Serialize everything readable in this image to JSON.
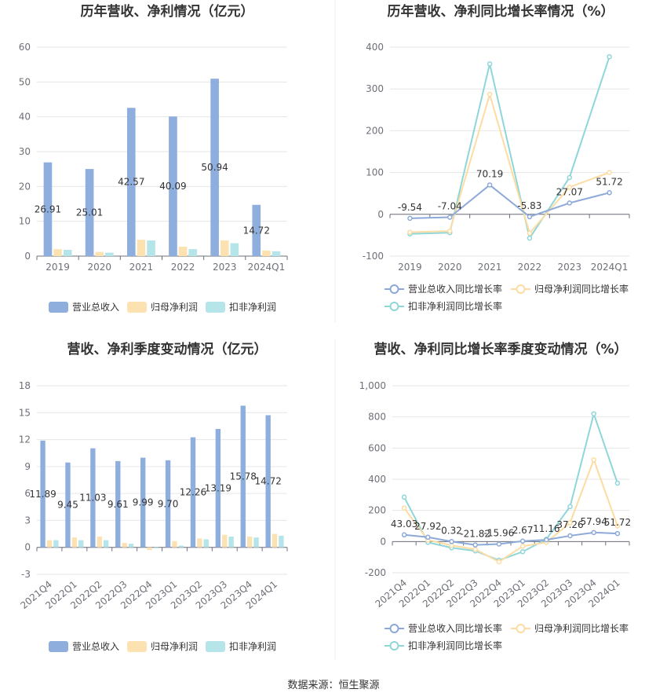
{
  "source": "数据来源：恒生聚源",
  "colors": {
    "revenue": "#8eaedd",
    "netprofit": "#fde2b1",
    "deducted": "#b5e5e8",
    "rev_line": "#8ca9d9",
    "np_line": "#fcdca2",
    "ded_line": "#8fd6d9"
  },
  "chart_data": [
    {
      "type": "bar",
      "title": "历年营收、净利情况（亿元）",
      "categories": [
        "2019",
        "2020",
        "2021",
        "2022",
        "2023",
        "2024Q1"
      ],
      "ylim": [
        0,
        60
      ],
      "yticks": [
        "0",
        "10",
        "20",
        "30",
        "40",
        "50",
        "60"
      ],
      "series": [
        {
          "name": "营业总收入",
          "values": [
            26.91,
            25.01,
            42.57,
            40.09,
            50.94,
            14.72
          ],
          "labels": [
            "26.91",
            "25.01",
            "42.57",
            "40.09",
            "50.94",
            "14.72"
          ]
        },
        {
          "name": "归母净利润",
          "values": [
            2.0,
            1.2,
            4.7,
            2.7,
            4.5,
            1.6
          ]
        },
        {
          "name": "扣非净利润",
          "values": [
            1.8,
            1.0,
            4.5,
            2.0,
            3.7,
            1.4
          ]
        }
      ],
      "legend": "bottom"
    },
    {
      "type": "line",
      "title": "历年营收、净利同比增长率情况（%）",
      "categories": [
        "2019",
        "2020",
        "2021",
        "2022",
        "2023",
        "2024Q1"
      ],
      "ylim": [
        -100,
        400
      ],
      "yticks": [
        "-100",
        "0",
        "100",
        "200",
        "300",
        "400"
      ],
      "series": [
        {
          "name": "营业总收入同比增长率",
          "values": [
            -9.54,
            -7.04,
            70.19,
            -5.83,
            27.07,
            51.72
          ],
          "labels": [
            "-9.54",
            "-7.04",
            "70.19",
            "-5.83",
            "27.07",
            "51.72"
          ]
        },
        {
          "name": "归母净利润同比增长率",
          "values": [
            -43,
            -40,
            287,
            -45,
            65,
            100
          ]
        },
        {
          "name": "扣非净利润同比增长率",
          "values": [
            -47,
            -44,
            360,
            -57,
            88,
            377
          ]
        }
      ],
      "legend": "bottom"
    },
    {
      "type": "bar",
      "title": "营收、净利季度变动情况（亿元）",
      "categories": [
        "2021Q4",
        "2022Q1",
        "2022Q2",
        "2022Q3",
        "2022Q4",
        "2023Q1",
        "2023Q2",
        "2023Q3",
        "2023Q4",
        "2024Q1"
      ],
      "ylim": [
        -3,
        18
      ],
      "yticks": [
        "-3",
        "0",
        "3",
        "6",
        "9",
        "12",
        "15",
        "18"
      ],
      "series": [
        {
          "name": "营业总收入",
          "values": [
            11.89,
            9.45,
            11.03,
            9.61,
            9.99,
            9.7,
            12.26,
            13.19,
            15.78,
            14.72
          ],
          "labels": [
            "11.89",
            "9.45",
            "11.03",
            "9.61",
            "9.99",
            "9.70",
            "12.26",
            "13.19",
            "15.78",
            "14.72"
          ]
        },
        {
          "name": "归母净利润",
          "values": [
            0.8,
            1.1,
            1.2,
            0.5,
            -0.3,
            0.7,
            1.0,
            1.4,
            1.2,
            1.5
          ]
        },
        {
          "name": "扣非净利润",
          "values": [
            0.8,
            0.8,
            0.8,
            0.4,
            -0.1,
            0.2,
            0.9,
            1.2,
            1.1,
            1.3
          ]
        }
      ],
      "legend": "bottom"
    },
    {
      "type": "line",
      "title": "营收、净利同比增长率季度变动情况（%）",
      "categories": [
        "2021Q4",
        "2022Q1",
        "2022Q2",
        "2022Q3",
        "2022Q4",
        "2023Q1",
        "2023Q2",
        "2023Q3",
        "2023Q4",
        "2024Q1"
      ],
      "ylim": [
        -200,
        1000
      ],
      "yticks": [
        "-200",
        "0",
        "200",
        "400",
        "600",
        "800",
        "1,000"
      ],
      "series": [
        {
          "name": "营业总收入同比增长率",
          "values": [
            43.03,
            27.92,
            0.32,
            -21.82,
            -15.96,
            2.67,
            11.16,
            37.26,
            57.94,
            51.72
          ],
          "labels": [
            "43.03",
            "27.92",
            "0.32",
            "-21.82",
            "-15.96",
            "2.67",
            "11.16",
            "37.26",
            "57.94",
            "51.72"
          ]
        },
        {
          "name": "归母净利润同比增长率",
          "values": [
            215,
            10,
            -25,
            -50,
            -130,
            -30,
            -5,
            120,
            525,
            100
          ]
        },
        {
          "name": "扣非净利润同比增长率",
          "values": [
            285,
            -5,
            -40,
            -60,
            -120,
            -65,
            15,
            225,
            820,
            375
          ]
        }
      ],
      "legend": "bottom"
    }
  ]
}
